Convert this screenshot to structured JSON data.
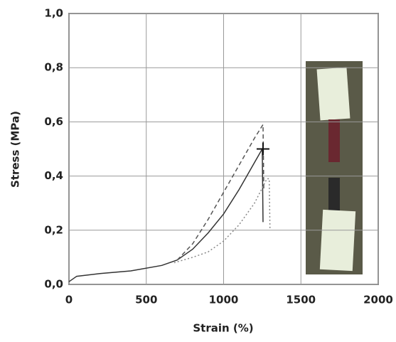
{
  "chart_data": {
    "type": "line",
    "xlabel": "Strain (%)",
    "ylabel": "Stress (MPa)",
    "xlim": [
      0,
      2000
    ],
    "xticks": [
      0,
      500,
      1000,
      1500,
      2000
    ],
    "ylim": [
      0,
      1.0
    ],
    "yticks": [
      {
        "value": 0,
        "label": "0,0"
      },
      {
        "value": 0.2,
        "label": "0,2"
      },
      {
        "value": 0.4,
        "label": "0,4"
      },
      {
        "value": 0.6,
        "label": "0,6"
      },
      {
        "value": 0.8,
        "label": "0,8"
      },
      {
        "value": 1.0,
        "label": "1,0"
      }
    ],
    "grid": true,
    "series": [
      {
        "color": "#333333",
        "dash": "solid",
        "x": [
          0,
          50,
          200,
          400,
          600,
          700,
          800,
          900,
          1000,
          1100,
          1200,
          1250,
          1255
        ],
        "values": [
          0.01,
          0.03,
          0.04,
          0.05,
          0.07,
          0.09,
          0.13,
          0.19,
          0.26,
          0.35,
          0.45,
          0.5,
          0.23
        ]
      },
      {
        "color": "#555555",
        "dash": "dashed",
        "x": [
          700,
          800,
          900,
          1000,
          1100,
          1200,
          1255,
          1260
        ],
        "values": [
          0.09,
          0.15,
          0.24,
          0.34,
          0.44,
          0.54,
          0.59,
          0.35
        ]
      },
      {
        "color": "#888888",
        "dash": "dotted",
        "x": [
          680,
          800,
          900,
          1000,
          1100,
          1200,
          1280,
          1295,
          1300
        ],
        "values": [
          0.08,
          0.1,
          0.12,
          0.16,
          0.22,
          0.3,
          0.39,
          0.39,
          0.2
        ]
      }
    ],
    "marker": {
      "x": 1255,
      "y": 0.5
    }
  }
}
